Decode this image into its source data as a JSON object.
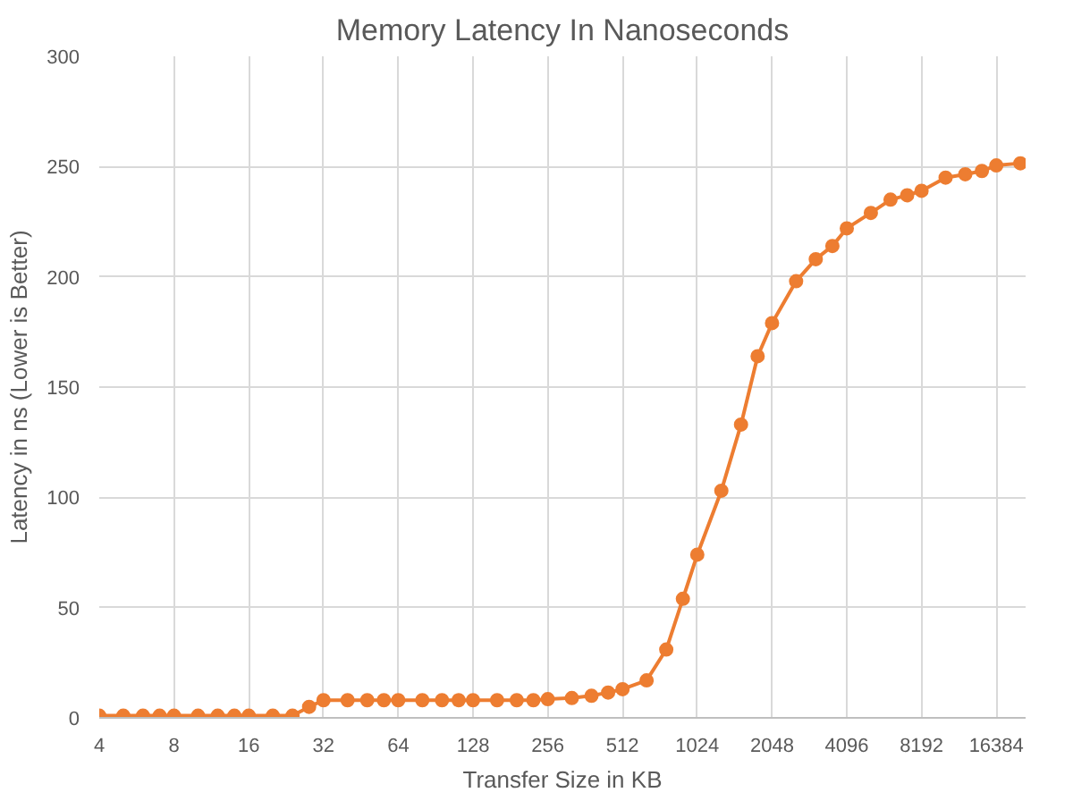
{
  "chart_data": {
    "type": "line",
    "title": "Memory Latency In Nanoseconds",
    "xlabel": "Transfer Size in KB",
    "ylabel": "Latency in ns (Lower is Better)",
    "x": [
      4,
      5,
      6,
      7,
      8,
      10,
      12,
      14,
      16,
      20,
      24,
      28,
      32,
      40,
      48,
      56,
      64,
      80,
      96,
      112,
      128,
      160,
      192,
      224,
      256,
      320,
      384,
      448,
      512,
      640,
      768,
      896,
      1024,
      1280,
      1536,
      1792,
      2048,
      2560,
      3072,
      3584,
      4096,
      5120,
      6144,
      7168,
      8192,
      10240,
      12288,
      14336,
      16384,
      20480
    ],
    "series": [
      {
        "color": "#ed7d31",
        "values": [
          1,
          1,
          1,
          1,
          1,
          1,
          1,
          1,
          1,
          1,
          1,
          5,
          8,
          8,
          8,
          8,
          8,
          8,
          8,
          8,
          8,
          8,
          8,
          8,
          8.5,
          9,
          10,
          11.5,
          13,
          17,
          31,
          54,
          74,
          103,
          133,
          164,
          179,
          198,
          208,
          214,
          222,
          229,
          235,
          237,
          239,
          245,
          246.5,
          248,
          250.5,
          251.5
        ]
      }
    ],
    "log": "x",
    "xlim": [
      4,
      21500
    ],
    "xticks": [
      4,
      8,
      16,
      32,
      64,
      128,
      256,
      512,
      1024,
      2048,
      4096,
      8192,
      16384
    ],
    "ylim": [
      0,
      300
    ],
    "yticks": [
      0,
      50,
      100,
      150,
      200,
      250,
      300
    ],
    "grid": true,
    "marker": "circle",
    "line_style": "solid"
  }
}
